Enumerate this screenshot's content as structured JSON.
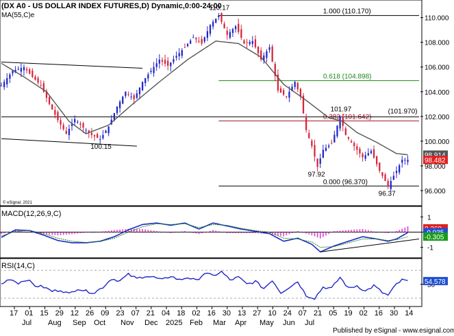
{
  "header": {
    "symbol_title": "(DX A0 - US DOLLAR INDEX FUTURES,D) Dynamic,0:00-24:00",
    "ma_label": "MA(55,C)e",
    "copyright": "© eSignal, 2021",
    "footer": "Published by eSignal - www.esignal.com"
  },
  "colors": {
    "up": "#1f26c9",
    "down": "#d9233a",
    "ma": "#555555",
    "fib_0618": "#1a8a1a",
    "fib_0382": "#a01020",
    "level": "#000000",
    "macd": "#1f26c9",
    "signal": "#1a8a1a",
    "hist": "#e040d0",
    "rsi": "#1f26c9",
    "badge_red": "#e02020",
    "badge_green": "#1a9a1a",
    "badge_blue": "#1f4fd0"
  },
  "chart_data": [
    {
      "type": "candlestick",
      "title": "(DX A0 - US DOLLAR INDEX FUTURES,D) Dynamic,0:00-24:00",
      "ylim": [
        95.0,
        111.2
      ],
      "y_ticks": [
        "96.000",
        "98.000",
        "100.000",
        "102.000",
        "104.000",
        "106.000",
        "108.000",
        "110.000"
      ],
      "y_tick_values": [
        96,
        98,
        100,
        102,
        104,
        106,
        108,
        110
      ],
      "x_tick_labels": [
        "17",
        "01",
        "15",
        "29",
        "12",
        "26",
        "09",
        "23",
        "07",
        "21",
        "04",
        "18",
        "02",
        "16",
        "30",
        "13",
        "27",
        "10",
        "24",
        "07",
        "21",
        "05",
        "19",
        "02",
        "16",
        "30",
        "14"
      ],
      "month_labels": [
        "Jul",
        "Aug",
        "Sep",
        "Oct",
        "Nov",
        "Dec",
        "2025",
        "Feb",
        "Mar",
        "Apr",
        "May",
        "Jun",
        "Jul"
      ],
      "price_path": [
        [
          0,
          104.5
        ],
        [
          4,
          105.7
        ],
        [
          8,
          106.0
        ],
        [
          11,
          105.2
        ],
        [
          14,
          104.5
        ],
        [
          17,
          103.0
        ],
        [
          20,
          101.7
        ],
        [
          23,
          100.6
        ],
        [
          26,
          101.8
        ],
        [
          29,
          101.1
        ],
        [
          32,
          100.5
        ],
        [
          35,
          100.15
        ],
        [
          38,
          101.2
        ],
        [
          41,
          102.8
        ],
        [
          44,
          104.0
        ],
        [
          47,
          103.4
        ],
        [
          50,
          104.8
        ],
        [
          53,
          105.7
        ],
        [
          56,
          106.6
        ],
        [
          59,
          106.1
        ],
        [
          62,
          106.9
        ],
        [
          65,
          107.6
        ],
        [
          68,
          108.4
        ],
        [
          71,
          107.9
        ],
        [
          74,
          109.4
        ],
        [
          77,
          110.17
        ],
        [
          80,
          108.6
        ],
        [
          83,
          109.3
        ],
        [
          86,
          107.9
        ],
        [
          89,
          108.1
        ],
        [
          92,
          106.6
        ],
        [
          95,
          107.6
        ],
        [
          98,
          104.1
        ],
        [
          101,
          103.6
        ],
        [
          104,
          104.8
        ],
        [
          106,
          103.6
        ],
        [
          108,
          100.9
        ],
        [
          110,
          99.6
        ],
        [
          112,
          97.92
        ],
        [
          114,
          99.3
        ],
        [
          117,
          99.8
        ],
        [
          120,
          101.97
        ],
        [
          122,
          100.5
        ],
        [
          125,
          99.6
        ],
        [
          128,
          98.7
        ],
        [
          131,
          99.2
        ],
        [
          134,
          97.6
        ],
        [
          137,
          96.37
        ],
        [
          140,
          97.6
        ],
        [
          142,
          98.5
        ],
        [
          144,
          98.482
        ]
      ],
      "ma_55": {
        "name": "MA(55,C)e",
        "points": [
          [
            0,
            106.3
          ],
          [
            8,
            105.2
          ],
          [
            16,
            104.0
          ],
          [
            24,
            101.6
          ],
          [
            30,
            100.6
          ],
          [
            38,
            101.3
          ],
          [
            46,
            102.9
          ],
          [
            56,
            104.8
          ],
          [
            66,
            106.6
          ],
          [
            76,
            108.1
          ],
          [
            84,
            107.9
          ],
          [
            92,
            106.8
          ],
          [
            100,
            104.6
          ],
          [
            108,
            103.3
          ],
          [
            116,
            101.9
          ],
          [
            121,
            101.6
          ],
          [
            126,
            100.7
          ],
          [
            133,
            99.9
          ],
          [
            140,
            99.0
          ],
          [
            144,
            98.9
          ]
        ]
      },
      "fibonacci": [
        {
          "label": "1.000 (110.170)",
          "value": 110.17
        },
        {
          "label": "0.618 (104.898)",
          "value": 104.898
        },
        {
          "label": "0.382 (101.642)",
          "value": 101.642
        },
        {
          "label": "0.000 (96.370)",
          "value": 96.37
        }
      ],
      "horizontal_level": {
        "label": "(101.970)",
        "value": 101.97
      },
      "annotations": [
        {
          "text": "110.17",
          "x": 77,
          "value": 110.17
        },
        {
          "text": "100.15",
          "x": 35,
          "value": 100.15
        },
        {
          "text": "101.97",
          "x": 120,
          "value": 101.97
        },
        {
          "text": "97.92",
          "x": 112,
          "value": 97.92
        },
        {
          "text": "96.37",
          "x": 137,
          "value": 96.37
        }
      ],
      "channel_lines": [
        {
          "from": [
            0,
            106.4
          ],
          "to": [
            50,
            105.9
          ]
        },
        {
          "from": [
            0,
            100.2
          ],
          "to": [
            48,
            99.6
          ]
        }
      ],
      "badges": [
        {
          "text": "98.914",
          "value": 98.914,
          "color": "#555555"
        },
        {
          "text": "98.482",
          "value": 98.482,
          "color": "#e02020"
        }
      ]
    },
    {
      "type": "line",
      "title": "MACD(12,26,9,C)",
      "ylim": [
        -1.6,
        1.6
      ],
      "y_ticks": [
        "1",
        "0",
        "-1"
      ],
      "y_tick_values": [
        1,
        0,
        -1
      ],
      "series": [
        {
          "name": "MACD",
          "color": "#1f26c9",
          "points": [
            [
              0,
              -0.35
            ],
            [
              5,
              0.15
            ],
            [
              10,
              0.1
            ],
            [
              15,
              -0.2
            ],
            [
              20,
              -0.55
            ],
            [
              25,
              -0.7
            ],
            [
              30,
              -0.7
            ],
            [
              35,
              -0.6
            ],
            [
              40,
              -0.3
            ],
            [
              45,
              0.15
            ],
            [
              50,
              0.5
            ],
            [
              55,
              0.6
            ],
            [
              60,
              0.45
            ],
            [
              65,
              0.6
            ],
            [
              70,
              0.2
            ],
            [
              75,
              0.6
            ],
            [
              80,
              0.4
            ],
            [
              85,
              0.2
            ],
            [
              90,
              0.05
            ],
            [
              95,
              -0.1
            ],
            [
              100,
              -0.6
            ],
            [
              105,
              -0.4
            ],
            [
              110,
              -0.8
            ],
            [
              113,
              -1.3
            ],
            [
              118,
              -0.9
            ],
            [
              123,
              -0.6
            ],
            [
              128,
              -0.3
            ],
            [
              133,
              -0.45
            ],
            [
              137,
              -0.6
            ],
            [
              140,
              -0.45
            ],
            [
              144,
              -0.035
            ]
          ]
        },
        {
          "name": "Signal",
          "color": "#1a8a1a",
          "points": [
            [
              0,
              -0.25
            ],
            [
              5,
              0.05
            ],
            [
              10,
              0.12
            ],
            [
              15,
              -0.1
            ],
            [
              20,
              -0.4
            ],
            [
              25,
              -0.6
            ],
            [
              30,
              -0.68
            ],
            [
              35,
              -0.62
            ],
            [
              40,
              -0.4
            ],
            [
              45,
              0.0
            ],
            [
              50,
              0.35
            ],
            [
              55,
              0.55
            ],
            [
              60,
              0.5
            ],
            [
              65,
              0.55
            ],
            [
              70,
              0.3
            ],
            [
              75,
              0.5
            ],
            [
              80,
              0.45
            ],
            [
              85,
              0.25
            ],
            [
              90,
              0.1
            ],
            [
              95,
              0.0
            ],
            [
              100,
              -0.4
            ],
            [
              105,
              -0.45
            ],
            [
              110,
              -0.65
            ],
            [
              113,
              -1.0
            ],
            [
              118,
              -0.95
            ],
            [
              123,
              -0.7
            ],
            [
              128,
              -0.45
            ],
            [
              133,
              -0.45
            ],
            [
              137,
              -0.55
            ],
            [
              140,
              -0.5
            ],
            [
              144,
              -0.305
            ]
          ]
        }
      ],
      "histogram_value": 0.269,
      "badges": [
        {
          "text": "0.269",
          "color": "#e02020"
        },
        {
          "text": "-0.035",
          "color": "#1f4fd0"
        },
        {
          "text": "-0.305",
          "color": "#1a9a1a"
        }
      ],
      "trendline": {
        "from": [
          113,
          -1.3
        ],
        "to": [
          148,
          -0.45
        ]
      }
    },
    {
      "type": "line",
      "title": "RSI(14,C)",
      "ylim": [
        20,
        85
      ],
      "y_ticks": [
        "50"
      ],
      "y_tick_values": [
        50
      ],
      "series": [
        {
          "name": "RSI",
          "color": "#1f26c9",
          "points": [
            [
              0,
              50
            ],
            [
              3,
              58
            ],
            [
              6,
              52
            ],
            [
              9,
              57
            ],
            [
              12,
              48
            ],
            [
              15,
              46
            ],
            [
              18,
              40
            ],
            [
              21,
              42
            ],
            [
              24,
              36
            ],
            [
              27,
              44
            ],
            [
              30,
              40
            ],
            [
              33,
              38
            ],
            [
              36,
              46
            ],
            [
              39,
              58
            ],
            [
              42,
              55
            ],
            [
              45,
              64
            ],
            [
              48,
              58
            ],
            [
              51,
              62
            ],
            [
              54,
              60
            ],
            [
              57,
              56
            ],
            [
              60,
              62
            ],
            [
              63,
              56
            ],
            [
              66,
              60
            ],
            [
              69,
              55
            ],
            [
              72,
              66
            ],
            [
              75,
              62
            ],
            [
              78,
              68
            ],
            [
              81,
              56
            ],
            [
              84,
              60
            ],
            [
              87,
              50
            ],
            [
              90,
              54
            ],
            [
              93,
              44
            ],
            [
              96,
              56
            ],
            [
              99,
              38
            ],
            [
              102,
              46
            ],
            [
              105,
              54
            ],
            [
              108,
              34
            ],
            [
              111,
              30
            ],
            [
              114,
              46
            ],
            [
              117,
              44
            ],
            [
              120,
              60
            ],
            [
              123,
              44
            ],
            [
              126,
              48
            ],
            [
              129,
              40
            ],
            [
              132,
              48
            ],
            [
              135,
              38
            ],
            [
              137,
              34
            ],
            [
              140,
              50
            ],
            [
              142,
              56
            ],
            [
              144,
              54.578
            ]
          ]
        }
      ],
      "badges": [
        {
          "text": "54.578",
          "color": "#1f4fd0"
        }
      ]
    }
  ]
}
